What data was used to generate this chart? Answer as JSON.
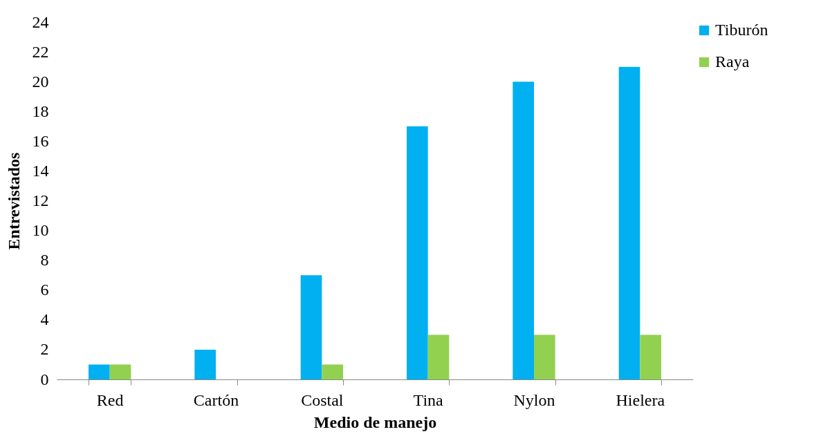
{
  "chart_data": {
    "type": "bar",
    "xlabel": "Medio de manejo",
    "ylabel": "Entrevistados",
    "categories": [
      "Red",
      "Cartón",
      "Costal",
      "Tina",
      "Nylon",
      "Hielera"
    ],
    "series": [
      {
        "name": "Tiburón",
        "color": "#00b0f0",
        "values": [
          1,
          2,
          7,
          17,
          20,
          21
        ]
      },
      {
        "name": "Raya",
        "color": "#92d050",
        "values": [
          1,
          null,
          1,
          3,
          3,
          3
        ]
      }
    ],
    "ylim": [
      0,
      24
    ],
    "yticks": [
      0,
      2,
      4,
      6,
      8,
      10,
      12,
      14,
      16,
      18,
      20,
      22,
      24
    ],
    "grid": false,
    "legend": "right"
  }
}
